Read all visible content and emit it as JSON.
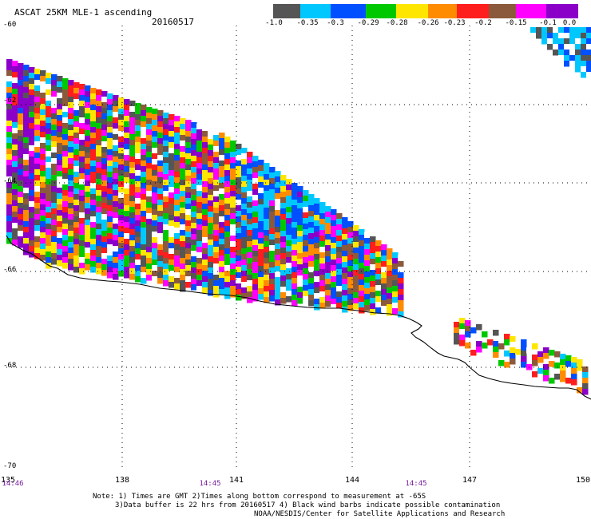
{
  "header": {
    "title": "ASCAT 25KM MLE-1 ascending",
    "date": "20160517"
  },
  "color_scale": {
    "labels": [
      "-1.0",
      "-0.35",
      "-0.3",
      "-0.29",
      "-0.28",
      "-0.26",
      "-0.23",
      "-0.2",
      "-0.15",
      "-0.1",
      "0.0"
    ],
    "colors": [
      "#555555",
      "#00c8ff",
      "#0050ff",
      "#00c800",
      "#ffe600",
      "#ff8c00",
      "#ff1e1e",
      "#8b5a3c",
      "#ff00ff",
      "#8a00c8"
    ]
  },
  "latitude_labels": [
    "-60",
    "-62",
    "-64",
    "-66",
    "-68",
    "-70"
  ],
  "longitude_labels": [
    "135",
    "138",
    "141",
    "144",
    "147",
    "150"
  ],
  "time_labels": [
    "14:46",
    "14:45",
    "14:45"
  ],
  "notes": {
    "line1": "Note: 1) Times are GMT 2)Times along bottom correspond to measurement at -65S",
    "line2": "3)Data buffer is 22 hrs from 20160517 4) Black wind barbs indicate possible contamination",
    "line3": "NOAA/NESDIS/Center for Satellite Applications and Research"
  }
}
